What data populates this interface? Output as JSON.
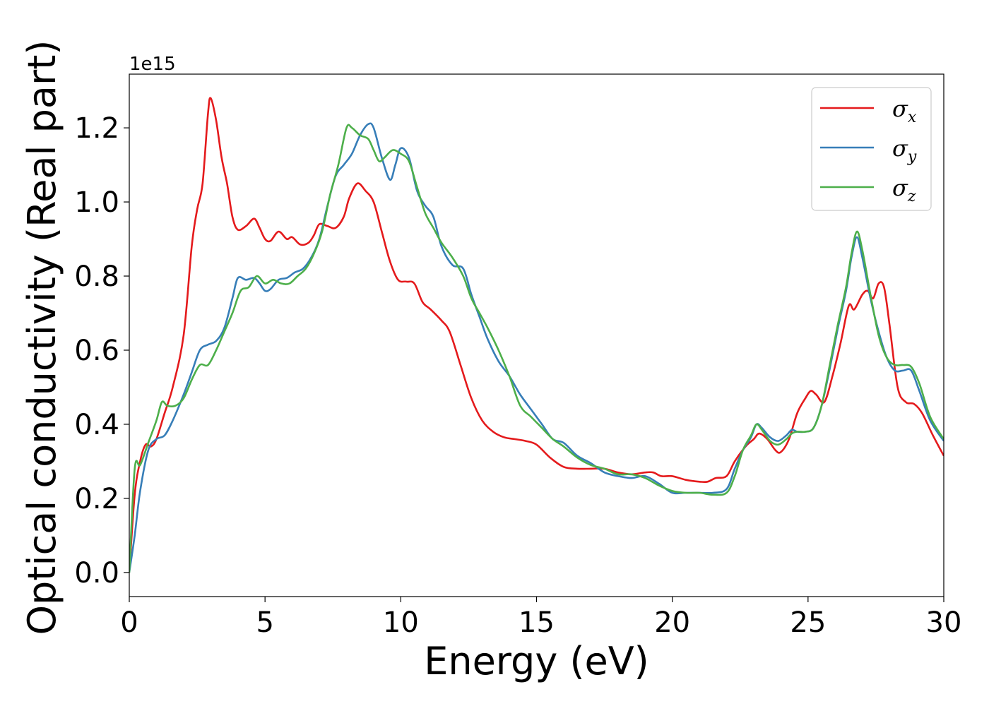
{
  "chart_data": {
    "type": "line",
    "xlabel": "Energy (eV)",
    "ylabel": "Optical conductivity (Real part)",
    "y_offset_text": "1e15",
    "xlim": [
      0,
      30
    ],
    "ylim": [
      -0.065,
      1.345
    ],
    "xticks": [
      0,
      5,
      10,
      15,
      20,
      25,
      30
    ],
    "xtick_labels": [
      "0",
      "5",
      "10",
      "15",
      "20",
      "25",
      "30"
    ],
    "yticks": [
      0.0,
      0.2,
      0.4,
      0.6,
      0.8,
      1.0,
      1.2
    ],
    "ytick_labels": [
      "0.0",
      "0.2",
      "0.4",
      "0.6",
      "0.8",
      "1.0",
      "1.2"
    ],
    "grid": false,
    "legend_position": "top-right",
    "series": [
      {
        "name": "σx",
        "symbol": "σ",
        "subscript": "x",
        "color": "#e41a1c",
        "x": [
          0,
          0.2,
          0.4,
          0.6,
          0.8,
          1.0,
          1.3,
          1.6,
          2.0,
          2.3,
          2.5,
          2.7,
          2.9,
          3.0,
          3.2,
          3.4,
          3.6,
          3.8,
          4.0,
          4.3,
          4.6,
          4.8,
          5.0,
          5.2,
          5.5,
          5.8,
          6.0,
          6.3,
          6.6,
          6.8,
          7.0,
          7.3,
          7.6,
          7.9,
          8.1,
          8.4,
          8.7,
          9.0,
          9.3,
          9.6,
          9.9,
          10.2,
          10.5,
          10.8,
          11.1,
          11.5,
          11.8,
          12.2,
          12.6,
          13.0,
          13.4,
          13.8,
          14.2,
          14.6,
          15.0,
          15.5,
          16.0,
          16.5,
          17.0,
          17.5,
          18.0,
          18.5,
          19.0,
          19.3,
          19.6,
          20.0,
          20.5,
          21.0,
          21.3,
          21.6,
          22.0,
          22.3,
          22.7,
          23.0,
          23.2,
          23.5,
          23.8,
          24.0,
          24.3,
          24.6,
          24.9,
          25.1,
          25.3,
          25.6,
          25.9,
          26.2,
          26.5,
          26.7,
          27.0,
          27.2,
          27.4,
          27.6,
          27.8,
          28.0,
          28.3,
          28.6,
          28.9,
          29.2,
          29.6,
          30.0
        ],
        "values": [
          0.0,
          0.21,
          0.3,
          0.345,
          0.34,
          0.36,
          0.43,
          0.5,
          0.64,
          0.88,
          0.98,
          1.05,
          1.24,
          1.28,
          1.22,
          1.12,
          1.05,
          0.96,
          0.925,
          0.935,
          0.955,
          0.93,
          0.9,
          0.895,
          0.92,
          0.9,
          0.905,
          0.885,
          0.89,
          0.91,
          0.94,
          0.935,
          0.93,
          0.96,
          1.01,
          1.05,
          1.03,
          1.0,
          0.92,
          0.84,
          0.79,
          0.785,
          0.78,
          0.73,
          0.71,
          0.68,
          0.65,
          0.56,
          0.47,
          0.41,
          0.38,
          0.365,
          0.36,
          0.355,
          0.345,
          0.31,
          0.285,
          0.28,
          0.28,
          0.28,
          0.27,
          0.265,
          0.27,
          0.27,
          0.26,
          0.26,
          0.25,
          0.245,
          0.245,
          0.255,
          0.26,
          0.3,
          0.34,
          0.36,
          0.375,
          0.36,
          0.33,
          0.325,
          0.36,
          0.43,
          0.47,
          0.49,
          0.48,
          0.46,
          0.53,
          0.62,
          0.72,
          0.71,
          0.75,
          0.76,
          0.74,
          0.78,
          0.77,
          0.67,
          0.5,
          0.46,
          0.455,
          0.43,
          0.37,
          0.315
        ]
      },
      {
        "name": "σy",
        "symbol": "σ",
        "subscript": "y",
        "color": "#377eb8",
        "x": [
          0,
          0.2,
          0.4,
          0.7,
          1.0,
          1.3,
          1.6,
          2.0,
          2.3,
          2.6,
          2.9,
          3.2,
          3.5,
          3.8,
          4.0,
          4.3,
          4.6,
          4.8,
          5.0,
          5.2,
          5.5,
          5.8,
          6.1,
          6.4,
          6.7,
          7.0,
          7.3,
          7.6,
          7.9,
          8.2,
          8.5,
          8.8,
          9.0,
          9.3,
          9.6,
          9.8,
          10.0,
          10.3,
          10.6,
          10.9,
          11.2,
          11.5,
          11.9,
          12.3,
          12.6,
          12.9,
          13.2,
          13.6,
          14.0,
          14.4,
          14.8,
          15.2,
          15.6,
          16.0,
          16.5,
          17.0,
          17.5,
          18.0,
          18.5,
          19.0,
          19.5,
          20.0,
          20.5,
          21.0,
          21.5,
          22.0,
          22.3,
          22.6,
          22.9,
          23.1,
          23.3,
          23.6,
          23.9,
          24.2,
          24.4,
          24.6,
          24.9,
          25.2,
          25.5,
          25.8,
          26.1,
          26.4,
          26.6,
          26.8,
          27.0,
          27.3,
          27.6,
          27.9,
          28.2,
          28.5,
          28.8,
          29.1,
          29.5,
          30.0
        ],
        "values": [
          0.0,
          0.1,
          0.22,
          0.33,
          0.36,
          0.37,
          0.41,
          0.48,
          0.54,
          0.6,
          0.615,
          0.625,
          0.66,
          0.74,
          0.795,
          0.79,
          0.795,
          0.78,
          0.76,
          0.765,
          0.79,
          0.795,
          0.81,
          0.82,
          0.85,
          0.9,
          0.99,
          1.07,
          1.1,
          1.13,
          1.18,
          1.21,
          1.2,
          1.12,
          1.06,
          1.1,
          1.145,
          1.12,
          1.03,
          0.99,
          0.96,
          0.88,
          0.83,
          0.82,
          0.75,
          0.69,
          0.63,
          0.57,
          0.53,
          0.48,
          0.44,
          0.4,
          0.36,
          0.35,
          0.315,
          0.295,
          0.27,
          0.26,
          0.255,
          0.26,
          0.24,
          0.215,
          0.215,
          0.215,
          0.215,
          0.225,
          0.28,
          0.33,
          0.365,
          0.4,
          0.39,
          0.365,
          0.355,
          0.37,
          0.385,
          0.38,
          0.38,
          0.39,
          0.45,
          0.55,
          0.66,
          0.76,
          0.85,
          0.905,
          0.85,
          0.74,
          0.65,
          0.58,
          0.545,
          0.545,
          0.545,
          0.49,
          0.41,
          0.355
        ]
      },
      {
        "name": "σz",
        "symbol": "σ",
        "subscript": "z",
        "color": "#4daf4a",
        "x": [
          0,
          0.2,
          0.4,
          0.7,
          1.0,
          1.2,
          1.4,
          1.7,
          2.0,
          2.3,
          2.6,
          2.9,
          3.2,
          3.5,
          3.8,
          4.1,
          4.4,
          4.7,
          5.0,
          5.3,
          5.6,
          5.9,
          6.2,
          6.5,
          6.8,
          7.1,
          7.4,
          7.7,
          8.0,
          8.2,
          8.5,
          8.8,
          9.0,
          9.2,
          9.4,
          9.7,
          10.0,
          10.3,
          10.6,
          10.9,
          11.2,
          11.5,
          11.9,
          12.3,
          12.6,
          12.9,
          13.2,
          13.6,
          14.0,
          14.4,
          14.8,
          15.2,
          15.6,
          16.0,
          16.5,
          17.0,
          17.5,
          18.0,
          18.5,
          19.0,
          19.5,
          20.0,
          20.5,
          21.0,
          21.5,
          22.0,
          22.3,
          22.6,
          22.9,
          23.1,
          23.3,
          23.6,
          23.9,
          24.2,
          24.4,
          24.6,
          24.9,
          25.2,
          25.5,
          25.8,
          26.1,
          26.4,
          26.6,
          26.8,
          27.0,
          27.3,
          27.6,
          27.9,
          28.2,
          28.5,
          28.8,
          29.1,
          29.5,
          30.0
        ],
        "values": [
          0.0,
          0.28,
          0.29,
          0.35,
          0.41,
          0.46,
          0.45,
          0.45,
          0.47,
          0.52,
          0.56,
          0.56,
          0.6,
          0.65,
          0.7,
          0.76,
          0.77,
          0.8,
          0.78,
          0.79,
          0.78,
          0.78,
          0.8,
          0.82,
          0.86,
          0.92,
          1.02,
          1.1,
          1.2,
          1.2,
          1.18,
          1.17,
          1.14,
          1.11,
          1.12,
          1.14,
          1.13,
          1.11,
          1.04,
          0.97,
          0.93,
          0.89,
          0.85,
          0.8,
          0.74,
          0.7,
          0.66,
          0.6,
          0.53,
          0.45,
          0.42,
          0.39,
          0.36,
          0.34,
          0.31,
          0.29,
          0.28,
          0.265,
          0.265,
          0.255,
          0.235,
          0.22,
          0.215,
          0.215,
          0.21,
          0.215,
          0.26,
          0.33,
          0.37,
          0.4,
          0.385,
          0.355,
          0.345,
          0.36,
          0.375,
          0.38,
          0.38,
          0.39,
          0.45,
          0.56,
          0.67,
          0.77,
          0.86,
          0.92,
          0.87,
          0.75,
          0.64,
          0.58,
          0.56,
          0.56,
          0.555,
          0.51,
          0.42,
          0.36
        ]
      }
    ]
  }
}
